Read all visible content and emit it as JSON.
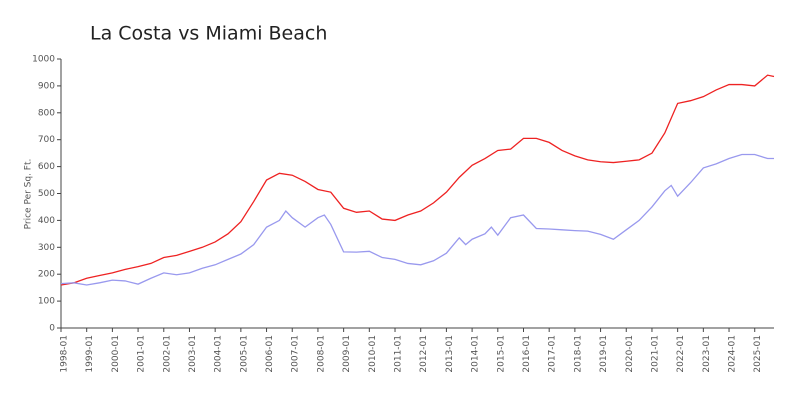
{
  "chart_data": {
    "type": "line",
    "title": "La Costa vs Miami Beach",
    "y_label": "Price Per Sq. Ft.",
    "xlim": [
      "1998-01",
      "2025-10"
    ],
    "xticks": [
      "1998-01",
      "1999-01",
      "2000-01",
      "2001-01",
      "2002-01",
      "2003-01",
      "2004-01",
      "2005-01",
      "2006-01",
      "2007-01",
      "2008-01",
      "2009-01",
      "2010-01",
      "2011-01",
      "2012-01",
      "2013-01",
      "2014-01",
      "2015-01",
      "2016-01",
      "2017-01",
      "2018-01",
      "2019-01",
      "2020-01",
      "2021-01",
      "2022-01",
      "2023-01",
      "2024-01",
      "2025-01"
    ],
    "ylim": [
      0,
      1000
    ],
    "yticks": [
      0,
      100,
      200,
      300,
      400,
      500,
      600,
      700,
      800,
      900,
      1000
    ],
    "grid": false,
    "series": [
      {
        "name": "La Costa",
        "color": "#ee2222",
        "x": [
          "1998-01",
          "1998-07",
          "1999-01",
          "1999-07",
          "2000-01",
          "2000-07",
          "2001-01",
          "2001-07",
          "2002-01",
          "2002-07",
          "2003-01",
          "2003-07",
          "2004-01",
          "2004-07",
          "2005-01",
          "2005-07",
          "2006-01",
          "2006-07",
          "2007-01",
          "2007-07",
          "2008-01",
          "2008-07",
          "2009-01",
          "2009-07",
          "2010-01",
          "2010-07",
          "2011-01",
          "2011-07",
          "2012-01",
          "2012-07",
          "2013-01",
          "2013-07",
          "2014-01",
          "2014-07",
          "2015-01",
          "2015-07",
          "2016-01",
          "2016-07",
          "2017-01",
          "2017-07",
          "2018-01",
          "2018-07",
          "2019-01",
          "2019-07",
          "2020-01",
          "2020-07",
          "2021-01",
          "2021-07",
          "2022-01",
          "2022-07",
          "2023-01",
          "2023-07",
          "2024-01",
          "2024-07",
          "2025-01",
          "2025-07",
          "2025-10"
        ],
        "values": [
          160,
          168,
          185,
          195,
          205,
          218,
          228,
          240,
          262,
          270,
          285,
          300,
          320,
          350,
          395,
          470,
          550,
          575,
          568,
          545,
          515,
          505,
          445,
          430,
          435,
          405,
          400,
          420,
          435,
          465,
          505,
          560,
          605,
          630,
          660,
          665,
          705,
          705,
          690,
          660,
          640,
          625,
          618,
          615,
          620,
          625,
          650,
          725,
          835,
          845,
          860,
          885,
          905,
          905,
          900,
          940,
          935
        ]
      },
      {
        "name": "Miami Beach",
        "color": "#9999ee",
        "x": [
          "1998-01",
          "1998-07",
          "1999-01",
          "1999-07",
          "2000-01",
          "2000-07",
          "2001-01",
          "2001-07",
          "2002-01",
          "2002-07",
          "2003-01",
          "2003-07",
          "2004-01",
          "2004-07",
          "2005-01",
          "2005-07",
          "2006-01",
          "2006-07",
          "2006-10",
          "2007-01",
          "2007-07",
          "2008-01",
          "2008-04",
          "2008-07",
          "2009-01",
          "2009-07",
          "2010-01",
          "2010-07",
          "2011-01",
          "2011-07",
          "2012-01",
          "2012-07",
          "2013-01",
          "2013-07",
          "2013-10",
          "2014-01",
          "2014-07",
          "2014-10",
          "2015-01",
          "2015-07",
          "2016-01",
          "2016-07",
          "2017-01",
          "2017-07",
          "2018-01",
          "2018-07",
          "2019-01",
          "2019-07",
          "2020-01",
          "2020-07",
          "2021-01",
          "2021-07",
          "2021-10",
          "2022-01",
          "2022-07",
          "2023-01",
          "2023-07",
          "2024-01",
          "2024-07",
          "2025-01",
          "2025-07",
          "2025-10"
        ],
        "values": [
          165,
          168,
          160,
          168,
          178,
          175,
          163,
          185,
          205,
          198,
          205,
          222,
          235,
          255,
          275,
          310,
          375,
          400,
          435,
          410,
          375,
          410,
          420,
          385,
          283,
          282,
          285,
          262,
          255,
          240,
          235,
          250,
          278,
          335,
          310,
          330,
          350,
          375,
          345,
          410,
          420,
          370,
          368,
          365,
          362,
          360,
          348,
          330,
          365,
          400,
          450,
          510,
          530,
          490,
          540,
          595,
          610,
          630,
          645,
          645,
          630,
          630
        ]
      }
    ]
  }
}
